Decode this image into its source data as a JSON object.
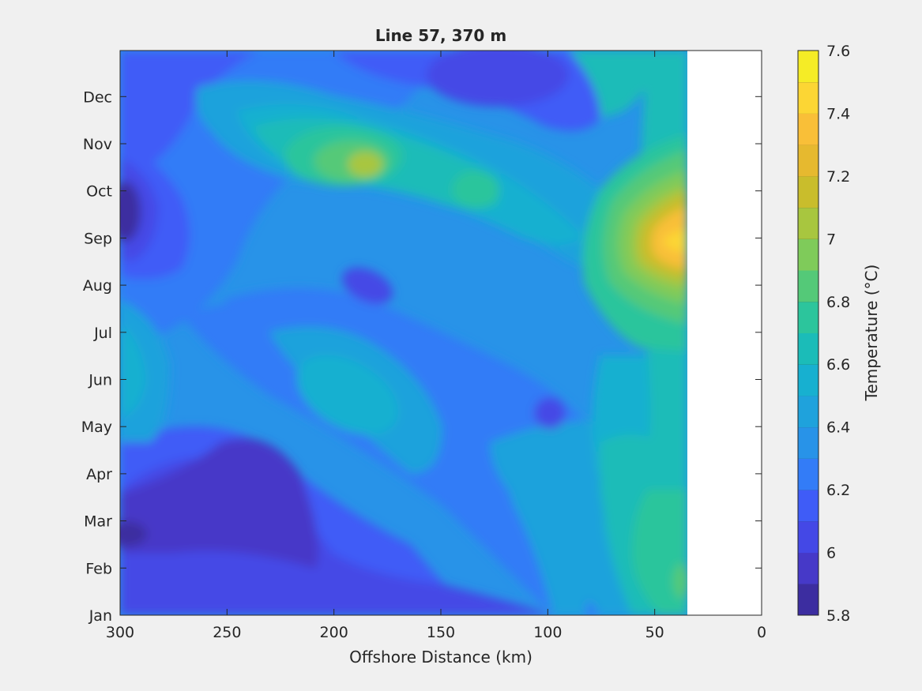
{
  "chart_data": {
    "type": "heatmap",
    "subtype": "filled-contour",
    "title": "Line 57, 370 m",
    "xlabel": "Offshore Distance (km)",
    "ylabel": "",
    "xlim": [
      300,
      0
    ],
    "x_direction": "reversed",
    "x_ticks": [
      300,
      250,
      200,
      150,
      100,
      50,
      0
    ],
    "y_ticks": [
      "Jan",
      "Feb",
      "Mar",
      "Apr",
      "May",
      "Jun",
      "Jul",
      "Aug",
      "Sep",
      "Oct",
      "Nov",
      "Dec"
    ],
    "data_extent_km": [
      300,
      35
    ],
    "colorbar": {
      "label": "Temperature (°C)",
      "range": [
        5.8,
        7.6
      ],
      "step": 0.1,
      "tick_labels": [
        "5.8",
        "6",
        "6.2",
        "6.4",
        "6.6",
        "6.8",
        "7",
        "7.2",
        "7.4",
        "7.6"
      ],
      "colors": [
        "#3c2da0",
        "#4639c8",
        "#4448e6",
        "#3f5cf7",
        "#337cf7",
        "#2893e8",
        "#1fa2dc",
        "#17b0d0",
        "#1bbcb8",
        "#2cc59c",
        "#54c978",
        "#7fcb5a",
        "#a8c63f",
        "#c9bd2c",
        "#e6b92f",
        "#f9bf38",
        "#fcd634",
        "#f5ec26"
      ]
    },
    "features": [
      {
        "label": "warm core",
        "x_km": 42,
        "month": "Sep",
        "value": 7.5
      },
      {
        "label": "warm patch",
        "x_km": 185,
        "month": "Oct-Nov",
        "value": 7.1
      },
      {
        "label": "warm patch",
        "x_km": 130,
        "month": "Oct",
        "value": 6.9
      },
      {
        "label": "cold patch",
        "x_km": 297,
        "month": "Sep-Oct",
        "value": 5.9
      },
      {
        "label": "cold patch",
        "x_km": 240,
        "month": "Feb-Mar",
        "value": 6.0
      },
      {
        "label": "cold patch",
        "x_km": 300,
        "month": "Mar",
        "value": 5.9
      },
      {
        "label": "cold patch",
        "x_km": 120,
        "month": "Dec",
        "value": 6.1
      },
      {
        "label": "cold patch",
        "x_km": 185,
        "month": "Aug",
        "value": 6.1
      },
      {
        "label": "warm patch",
        "x_km": 175,
        "month": "Jun",
        "value": 6.6
      },
      {
        "label": "warm patch",
        "x_km": 300,
        "month": "Jun",
        "value": 6.7
      }
    ]
  }
}
